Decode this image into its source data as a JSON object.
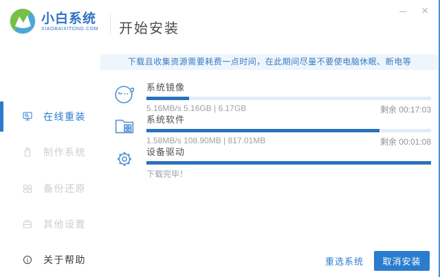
{
  "window": {
    "minimize_icon": "–",
    "close_icon": "×"
  },
  "brand": {
    "name": "小白系统",
    "domain": "XIAOBAIXITONG.COM"
  },
  "header": {
    "title": "开始安装"
  },
  "sidebar": {
    "items": [
      {
        "label": "在线重装",
        "icon": "monitor-icon",
        "state": "active"
      },
      {
        "label": "制作系统",
        "icon": "usb-drive-icon",
        "state": "disabled"
      },
      {
        "label": "备份还原",
        "icon": "backup-icon",
        "state": "disabled"
      },
      {
        "label": "其他设置",
        "icon": "briefcase-icon",
        "state": "disabled"
      },
      {
        "label": "关于帮助",
        "icon": "info-icon",
        "state": "normal"
      }
    ]
  },
  "notice": {
    "text": "下载且收集资源需要耗费一点时间，在此期间尽量不要使电脑休眠、断电等"
  },
  "tasks": [
    {
      "name": "系统镜像",
      "progress_percent": 15,
      "stats": "5.16MB/s 5.16GB | 6.17GB",
      "remaining": "剩余 00:17:03"
    },
    {
      "name": "系统软件",
      "progress_percent": 82,
      "stats": "1.58MB/s 108.90MB | 817.01MB",
      "remaining": "剩余 00:01:08"
    },
    {
      "name": "设备驱动",
      "progress_percent": 100,
      "stats": "下载完毕！",
      "remaining": ""
    }
  ],
  "footer": {
    "reselect_label": "重选系统",
    "cancel_label": "取消安装"
  },
  "colors": {
    "accent": "#2b7cce",
    "progress_fill": "#2a71bd",
    "progress_track": "#e2ecf6",
    "notice_bg": "#eef5fc",
    "notice_text": "#3a7cc3"
  }
}
